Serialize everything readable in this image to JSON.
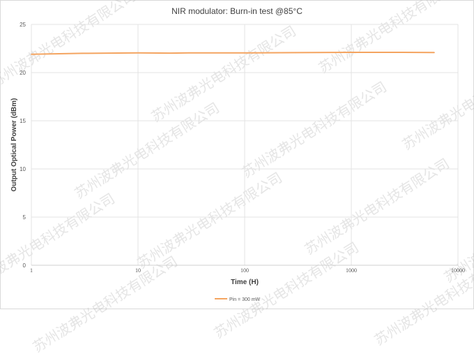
{
  "chart_data": {
    "type": "line",
    "title": "NIR modulator: Burn-in test @85°C",
    "xlabel": "Time (H)",
    "ylabel": "Output Optical Power (dBm)",
    "xscale": "log",
    "xlim": [
      1,
      10000
    ],
    "ylim": [
      0,
      25
    ],
    "xticks": [
      "1",
      "10",
      "100",
      "1000",
      "10000"
    ],
    "yticks": [
      "0",
      "5",
      "10",
      "15",
      "20",
      "25"
    ],
    "grid": true,
    "legend_position": "bottom",
    "series": [
      {
        "name": "Pin = 300 mW",
        "color": "#f4a460",
        "x": [
          1,
          3,
          10,
          20,
          30,
          100,
          300,
          1000,
          3000,
          6000
        ],
        "y": [
          21.9,
          22.0,
          22.05,
          22.02,
          22.05,
          22.05,
          22.07,
          22.1,
          22.1,
          22.08
        ]
      }
    ]
  },
  "watermark": "苏州波弗光电科技有限公司"
}
